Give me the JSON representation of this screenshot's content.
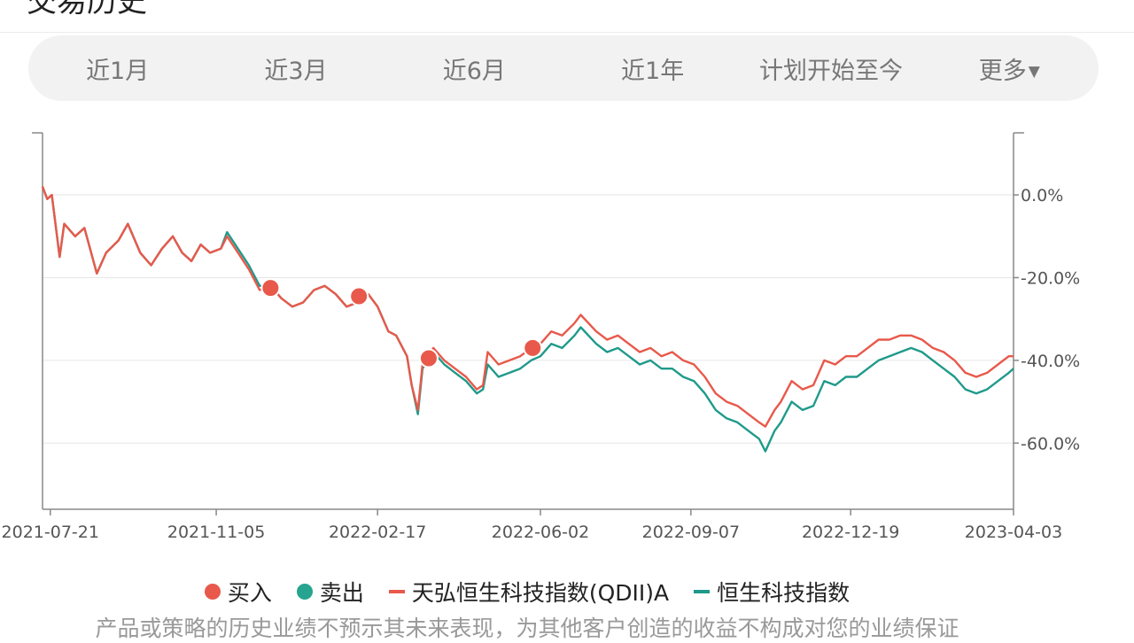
{
  "page": {
    "title": "交易历史"
  },
  "tabs": [
    {
      "label": "近1月"
    },
    {
      "label": "近3月"
    },
    {
      "label": "近6月"
    },
    {
      "label": "近1年"
    },
    {
      "label": "计划开始至今"
    },
    {
      "label": "更多",
      "icon": "caret-down-icon"
    }
  ],
  "legend": {
    "buy": "买入",
    "sell": "卖出",
    "fund": "天弘恒生科技指数(QDII)A",
    "index": "恒生科技指数"
  },
  "disclaimer": "产品或策略的历史业绩不预示其未来表现，为其他客户创造的收益不构成对您的业绩保证",
  "colors": {
    "fund": "#e8594b",
    "index": "#1f9a8a",
    "buy": "#e8594b",
    "sell": "#26a48f",
    "grid": "#e6e6e6",
    "axis": "#888888",
    "tick_text": "#555555"
  },
  "chart_data": {
    "type": "line",
    "x_axis": {
      "type": "date",
      "range": [
        "2021-07-16",
        "2023-04-03"
      ],
      "ticks": [
        "2021-07-21",
        "2021-11-05",
        "2022-02-17",
        "2022-06-02",
        "2022-09-07",
        "2022-12-19",
        "2023-04-03"
      ]
    },
    "y_axis": {
      "position": "right",
      "unit": "%",
      "range": [
        -76,
        15
      ],
      "ticks": [
        0,
        -20,
        -40,
        -60
      ],
      "tick_labels": [
        "0.0%",
        "-20.0%",
        "-40.0%",
        "-60.0%"
      ],
      "grid": true
    },
    "legend_position": "bottom",
    "series": [
      {
        "name": "天弘恒生科技指数(QDII)A",
        "key": "fund",
        "points": [
          [
            "2021-07-16",
            2
          ],
          [
            "2021-07-19",
            -1
          ],
          [
            "2021-07-22",
            0
          ],
          [
            "2021-07-27",
            -15
          ],
          [
            "2021-07-30",
            -7
          ],
          [
            "2021-08-06",
            -10
          ],
          [
            "2021-08-12",
            -8
          ],
          [
            "2021-08-20",
            -19
          ],
          [
            "2021-08-26",
            -14
          ],
          [
            "2021-09-03",
            -11
          ],
          [
            "2021-09-09",
            -7
          ],
          [
            "2021-09-17",
            -14
          ],
          [
            "2021-09-24",
            -17
          ],
          [
            "2021-10-01",
            -13
          ],
          [
            "2021-10-08",
            -10
          ],
          [
            "2021-10-14",
            -14
          ],
          [
            "2021-10-20",
            -16
          ],
          [
            "2021-10-26",
            -12
          ],
          [
            "2021-11-01",
            -14
          ],
          [
            "2021-11-08",
            -13
          ],
          [
            "2021-11-12",
            -10
          ],
          [
            "2021-11-19",
            -14
          ],
          [
            "2021-11-26",
            -18
          ],
          [
            "2021-12-03",
            -23
          ],
          [
            "2021-12-10",
            -22
          ],
          [
            "2021-12-17",
            -25
          ],
          [
            "2021-12-24",
            -27
          ],
          [
            "2021-12-31",
            -26
          ],
          [
            "2022-01-07",
            -23
          ],
          [
            "2022-01-14",
            -22
          ],
          [
            "2022-01-21",
            -24
          ],
          [
            "2022-01-28",
            -27
          ],
          [
            "2022-02-04",
            -26
          ],
          [
            "2022-02-11",
            -24
          ],
          [
            "2022-02-17",
            -27
          ],
          [
            "2022-02-24",
            -33
          ],
          [
            "2022-03-01",
            -34
          ],
          [
            "2022-03-08",
            -39
          ],
          [
            "2022-03-11",
            -46
          ],
          [
            "2022-03-15",
            -52
          ],
          [
            "2022-03-18",
            -41
          ],
          [
            "2022-03-25",
            -37
          ],
          [
            "2022-04-01",
            -40
          ],
          [
            "2022-04-08",
            -42
          ],
          [
            "2022-04-15",
            -44
          ],
          [
            "2022-04-22",
            -47
          ],
          [
            "2022-04-26",
            -46
          ],
          [
            "2022-04-29",
            -38
          ],
          [
            "2022-05-06",
            -41
          ],
          [
            "2022-05-13",
            -40
          ],
          [
            "2022-05-20",
            -39
          ],
          [
            "2022-05-27",
            -37
          ],
          [
            "2022-06-02",
            -36
          ],
          [
            "2022-06-09",
            -33
          ],
          [
            "2022-06-16",
            -34
          ],
          [
            "2022-06-24",
            -31
          ],
          [
            "2022-06-28",
            -29
          ],
          [
            "2022-07-08",
            -33
          ],
          [
            "2022-07-15",
            -35
          ],
          [
            "2022-07-22",
            -34
          ],
          [
            "2022-07-29",
            -36
          ],
          [
            "2022-08-05",
            -38
          ],
          [
            "2022-08-12",
            -37
          ],
          [
            "2022-08-19",
            -39
          ],
          [
            "2022-08-26",
            -38
          ],
          [
            "2022-09-02",
            -40
          ],
          [
            "2022-09-09",
            -41
          ],
          [
            "2022-09-16",
            -44
          ],
          [
            "2022-09-23",
            -48
          ],
          [
            "2022-09-30",
            -50
          ],
          [
            "2022-10-07",
            -51
          ],
          [
            "2022-10-14",
            -53
          ],
          [
            "2022-10-21",
            -55
          ],
          [
            "2022-10-25",
            -56
          ],
          [
            "2022-10-31",
            -52
          ],
          [
            "2022-11-04",
            -50
          ],
          [
            "2022-11-11",
            -45
          ],
          [
            "2022-11-18",
            -47
          ],
          [
            "2022-11-25",
            -46
          ],
          [
            "2022-12-02",
            -40
          ],
          [
            "2022-12-09",
            -41
          ],
          [
            "2022-12-16",
            -39
          ],
          [
            "2022-12-23",
            -39
          ],
          [
            "2022-12-30",
            -37
          ],
          [
            "2023-01-06",
            -35
          ],
          [
            "2023-01-13",
            -35
          ],
          [
            "2023-01-20",
            -34
          ],
          [
            "2023-01-27",
            -34
          ],
          [
            "2023-02-03",
            -35
          ],
          [
            "2023-02-10",
            -37
          ],
          [
            "2023-02-17",
            -38
          ],
          [
            "2023-02-24",
            -40
          ],
          [
            "2023-03-03",
            -43
          ],
          [
            "2023-03-10",
            -44
          ],
          [
            "2023-03-17",
            -43
          ],
          [
            "2023-03-24",
            -41
          ],
          [
            "2023-03-31",
            -39
          ],
          [
            "2023-04-03",
            -39
          ]
        ]
      },
      {
        "name": "恒生科技指数",
        "key": "index",
        "points": [
          [
            "2021-07-16",
            2
          ],
          [
            "2021-07-19",
            -1
          ],
          [
            "2021-07-22",
            0
          ],
          [
            "2021-07-27",
            -15
          ],
          [
            "2021-07-30",
            -7
          ],
          [
            "2021-08-06",
            -10
          ],
          [
            "2021-08-12",
            -8
          ],
          [
            "2021-08-20",
            -19
          ],
          [
            "2021-08-26",
            -14
          ],
          [
            "2021-09-03",
            -11
          ],
          [
            "2021-09-09",
            -7
          ],
          [
            "2021-09-17",
            -14
          ],
          [
            "2021-09-24",
            -17
          ],
          [
            "2021-10-01",
            -13
          ],
          [
            "2021-10-08",
            -10
          ],
          [
            "2021-10-14",
            -14
          ],
          [
            "2021-10-20",
            -16
          ],
          [
            "2021-10-26",
            -12
          ],
          [
            "2021-11-01",
            -14
          ],
          [
            "2021-11-08",
            -13
          ],
          [
            "2021-11-12",
            -9
          ],
          [
            "2021-11-19",
            -13
          ],
          [
            "2021-11-26",
            -17
          ],
          [
            "2021-12-03",
            -22
          ],
          [
            "2021-12-10",
            -22
          ],
          [
            "2021-12-17",
            -25
          ],
          [
            "2021-12-24",
            -27
          ],
          [
            "2021-12-31",
            -26
          ],
          [
            "2022-01-07",
            -23
          ],
          [
            "2022-01-14",
            -22
          ],
          [
            "2022-01-21",
            -24
          ],
          [
            "2022-01-28",
            -27
          ],
          [
            "2022-02-04",
            -26
          ],
          [
            "2022-02-11",
            -24
          ],
          [
            "2022-02-17",
            -27
          ],
          [
            "2022-02-24",
            -33
          ],
          [
            "2022-03-01",
            -34
          ],
          [
            "2022-03-08",
            -39
          ],
          [
            "2022-03-11",
            -46
          ],
          [
            "2022-03-15",
            -53
          ],
          [
            "2022-03-18",
            -42
          ],
          [
            "2022-03-25",
            -38
          ],
          [
            "2022-04-01",
            -41
          ],
          [
            "2022-04-08",
            -43
          ],
          [
            "2022-04-15",
            -45
          ],
          [
            "2022-04-22",
            -48
          ],
          [
            "2022-04-26",
            -47
          ],
          [
            "2022-04-29",
            -41
          ],
          [
            "2022-05-06",
            -44
          ],
          [
            "2022-05-13",
            -43
          ],
          [
            "2022-05-20",
            -42
          ],
          [
            "2022-05-27",
            -40
          ],
          [
            "2022-06-02",
            -39
          ],
          [
            "2022-06-09",
            -36
          ],
          [
            "2022-06-16",
            -37
          ],
          [
            "2022-06-24",
            -34
          ],
          [
            "2022-06-28",
            -32
          ],
          [
            "2022-07-08",
            -36
          ],
          [
            "2022-07-15",
            -38
          ],
          [
            "2022-07-22",
            -37
          ],
          [
            "2022-07-29",
            -39
          ],
          [
            "2022-08-05",
            -41
          ],
          [
            "2022-08-12",
            -40
          ],
          [
            "2022-08-19",
            -42
          ],
          [
            "2022-08-26",
            -42
          ],
          [
            "2022-09-02",
            -44
          ],
          [
            "2022-09-09",
            -45
          ],
          [
            "2022-09-16",
            -48
          ],
          [
            "2022-09-23",
            -52
          ],
          [
            "2022-09-30",
            -54
          ],
          [
            "2022-10-07",
            -55
          ],
          [
            "2022-10-14",
            -57
          ],
          [
            "2022-10-21",
            -59
          ],
          [
            "2022-10-25",
            -62
          ],
          [
            "2022-10-31",
            -57
          ],
          [
            "2022-11-04",
            -55
          ],
          [
            "2022-11-11",
            -50
          ],
          [
            "2022-11-18",
            -52
          ],
          [
            "2022-11-25",
            -51
          ],
          [
            "2022-12-02",
            -45
          ],
          [
            "2022-12-09",
            -46
          ],
          [
            "2022-12-16",
            -44
          ],
          [
            "2022-12-23",
            -44
          ],
          [
            "2022-12-30",
            -42
          ],
          [
            "2023-01-06",
            -40
          ],
          [
            "2023-01-13",
            -39
          ],
          [
            "2023-01-20",
            -38
          ],
          [
            "2023-01-27",
            -37
          ],
          [
            "2023-02-03",
            -38
          ],
          [
            "2023-02-10",
            -40
          ],
          [
            "2023-02-17",
            -42
          ],
          [
            "2023-02-24",
            -44
          ],
          [
            "2023-03-03",
            -47
          ],
          [
            "2023-03-10",
            -48
          ],
          [
            "2023-03-17",
            -47
          ],
          [
            "2023-03-24",
            -45
          ],
          [
            "2023-03-31",
            -43
          ],
          [
            "2023-04-03",
            -42
          ]
        ]
      }
    ],
    "markers": [
      {
        "type": "buy",
        "date": "2021-12-10",
        "value": -22.5
      },
      {
        "type": "buy",
        "date": "2022-02-05",
        "value": -24.5
      },
      {
        "type": "buy",
        "date": "2022-03-22",
        "value": -39.5
      },
      {
        "type": "buy",
        "date": "2022-05-28",
        "value": -37
      }
    ]
  }
}
